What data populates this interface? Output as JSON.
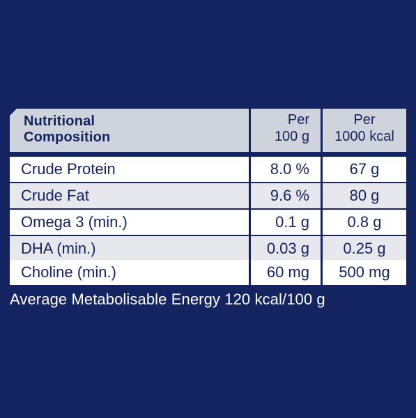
{
  "colors": {
    "background": "#142461",
    "header_bg": "#cfd3dc",
    "row_white": "#ffffff",
    "row_grey": "#e6e8ee",
    "text_dark": "#142461",
    "text_light": "#ffffff"
  },
  "table": {
    "header": {
      "title_line1": "Nutritional",
      "title_line2": "Composition",
      "col1_line1": "Per",
      "col1_line2": "100 g",
      "col2_line1": "Per",
      "col2_line2": "1000 kcal"
    },
    "rows": [
      {
        "label": "Crude Protein",
        "per100g": "8.0 %",
        "per1000kcal": "67 g"
      },
      {
        "label": "Crude Fat",
        "per100g": "9.6 %",
        "per1000kcal": "80 g"
      },
      {
        "label": "Omega 3 (min.)",
        "per100g": "0.1 g",
        "per1000kcal": "0.8 g"
      },
      {
        "label": "DHA (min.)",
        "per100g": "0.03 g",
        "per1000kcal": "0.25 g"
      },
      {
        "label": "Choline (min.)",
        "per100g": "60 mg",
        "per1000kcal": "500 mg"
      }
    ]
  },
  "footnote": "Average Metabolisable Energy 120 kcal/100 g"
}
